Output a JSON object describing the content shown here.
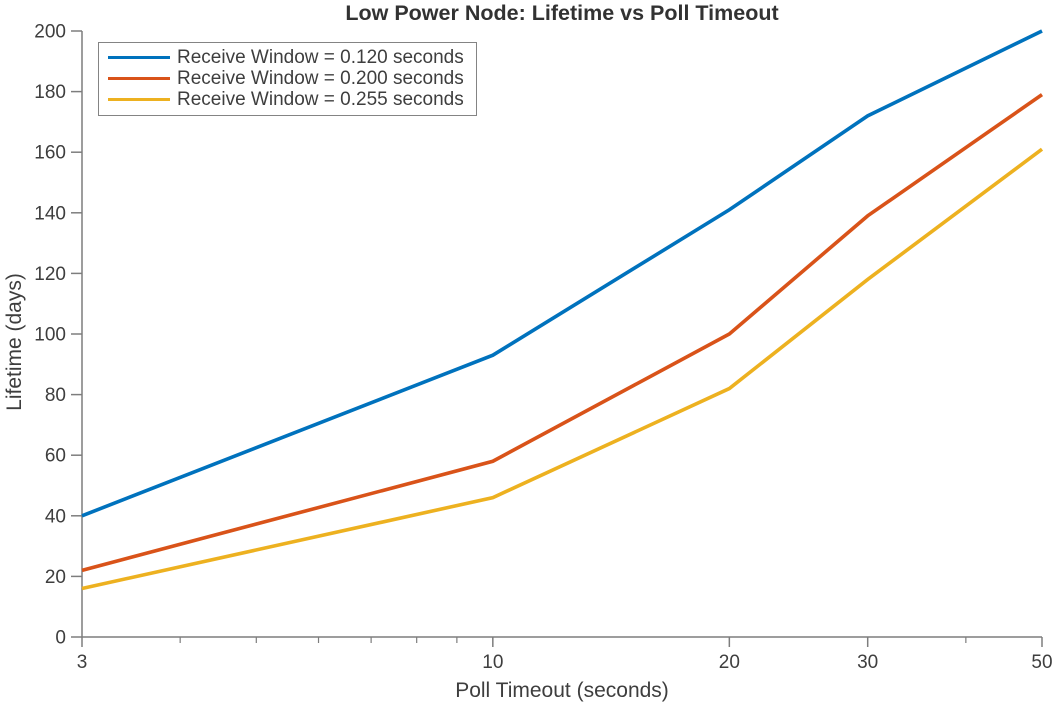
{
  "chart_data": {
    "type": "line",
    "title": "Low Power Node: Lifetime vs Poll Timeout",
    "xlabel": "Poll Timeout (seconds)",
    "ylabel": "Lifetime (days)",
    "x_scale": "log",
    "xlim": [
      3,
      50
    ],
    "ylim": [
      0,
      200
    ],
    "x_ticks": [
      3,
      10,
      20,
      30,
      50
    ],
    "x_minor_ticks": [
      4,
      5,
      6,
      7,
      8,
      9,
      40
    ],
    "y_ticks": [
      0,
      20,
      40,
      60,
      80,
      100,
      120,
      140,
      160,
      180,
      200
    ],
    "x": [
      3,
      10,
      20,
      30,
      50
    ],
    "series": [
      {
        "name": "Receive Window = 0.120 seconds",
        "color": "#0072BD",
        "values": [
          40,
          93,
          141,
          172,
          200
        ]
      },
      {
        "name": "Receive Window = 0.200 seconds",
        "color": "#D95319",
        "values": [
          22,
          58,
          100,
          139,
          179
        ]
      },
      {
        "name": "Receive Window = 0.255 seconds",
        "color": "#EDB120",
        "values": [
          16,
          46,
          82,
          118,
          161
        ]
      }
    ],
    "legend": {
      "position": "northwest"
    },
    "grid": false,
    "axis_color": "#7d7d7d",
    "text_color": "#3e3e3e"
  }
}
